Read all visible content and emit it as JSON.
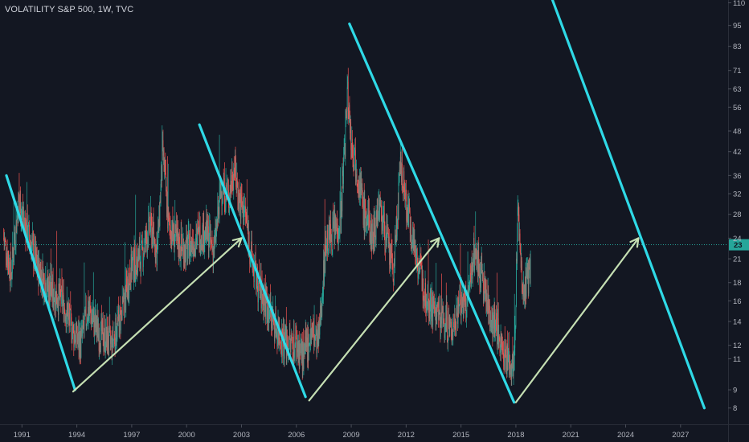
{
  "header": {
    "title": "VOLATILITY S&P 500, 1W, TVC"
  },
  "colors": {
    "background": "#131722",
    "up": "#26a69a",
    "down": "#ef5350",
    "trendline": "#2fd9e6",
    "arrow": "#c5dfb3",
    "price_line": "#26a69a",
    "axis_text": "#b2b5be",
    "grid": "#1c2130"
  },
  "chart_data": {
    "type": "line",
    "title": "VOLATILITY S&P 500, 1W, TVC",
    "x_ticks": [
      "1991",
      "1994",
      "1997",
      "2000",
      "2003",
      "2006",
      "2009",
      "2012",
      "2015",
      "2018",
      "2021",
      "2024",
      "2027"
    ],
    "x_tick_years": [
      1991,
      1994,
      1997,
      2000,
      2003,
      2006,
      2009,
      2012,
      2015,
      2018,
      2021,
      2024,
      2027
    ],
    "xlim": [
      1989.8,
      2029.6
    ],
    "y_ticks": [
      8,
      9,
      11,
      12,
      14,
      16,
      18,
      21,
      24,
      28,
      32,
      36,
      42,
      48,
      56,
      63,
      71,
      83,
      95,
      110
    ],
    "ylim": [
      7.2,
      112
    ],
    "y_scale": "log",
    "current_price": {
      "label": "23",
      "value": 23
    },
    "grid": false,
    "series": [
      {
        "values_x": [
          1990.0,
          1990.4,
          1990.8,
          1991.2,
          1991.8,
          1992.5,
          1993.2,
          1993.8,
          1994.2,
          1994.6,
          1995.2,
          1995.9,
          1996.5,
          1997.0,
          1997.5,
          1998.0,
          1998.4,
          1998.7,
          1999.0,
          1999.5,
          2000.0,
          2000.5,
          2001.0,
          2001.5,
          2001.9,
          2002.3,
          2002.6,
          2002.9,
          2003.2,
          2003.6,
          2004.0,
          2004.5,
          2005.0,
          2005.5,
          2006.0,
          2006.4,
          2006.8,
          2007.2,
          2007.6,
          2008.0,
          2008.4,
          2008.8,
          2009.0,
          2009.3,
          2009.7,
          2010.2,
          2010.5,
          2010.9,
          2011.3,
          2011.7,
          2012.0,
          2012.5,
          2013.0,
          2013.5,
          2014.0,
          2014.5,
          2014.9,
          2015.3,
          2015.7,
          2016.1,
          2016.5,
          2017.0,
          2017.5,
          2017.9,
          2018.1,
          2018.4,
          2018.8
        ],
        "values_y": [
          24,
          19,
          30,
          26,
          20,
          17,
          16,
          13,
          12,
          15,
          13,
          12,
          15,
          20,
          21,
          26,
          22,
          42,
          26,
          23,
          22,
          24,
          25,
          22,
          33,
          31,
          38,
          30,
          28,
          20,
          17,
          15,
          13,
          12,
          12,
          11,
          13,
          12,
          23,
          25,
          26,
          62,
          45,
          38,
          28,
          24,
          30,
          24,
          19,
          38,
          30,
          22,
          17,
          15,
          14,
          13,
          16,
          15,
          22,
          19,
          15,
          13,
          11,
          10,
          29,
          16,
          20
        ]
      }
    ],
    "annotations": [
      {
        "kind": "trendline",
        "x": [
          1990.15,
          1993.9
        ],
        "y": [
          36,
          9
        ]
      },
      {
        "kind": "trendline",
        "x": [
          2000.7,
          2006.5
        ],
        "y": [
          50,
          8.6
        ]
      },
      {
        "kind": "trendline",
        "x": [
          2008.9,
          2017.9
        ],
        "y": [
          96,
          8.3
        ]
      },
      {
        "kind": "trendline",
        "x": [
          2020.0,
          2028.3
        ],
        "y": [
          112,
          8.0
        ]
      },
      {
        "kind": "arrow",
        "x": [
          1993.8,
          2003.0
        ],
        "y": [
          8.9,
          24
        ]
      },
      {
        "kind": "arrow",
        "x": [
          2006.7,
          2013.8
        ],
        "y": [
          8.4,
          24
        ]
      },
      {
        "kind": "arrow",
        "x": [
          2018.0,
          2024.7
        ],
        "y": [
          8.3,
          24
        ]
      }
    ]
  }
}
